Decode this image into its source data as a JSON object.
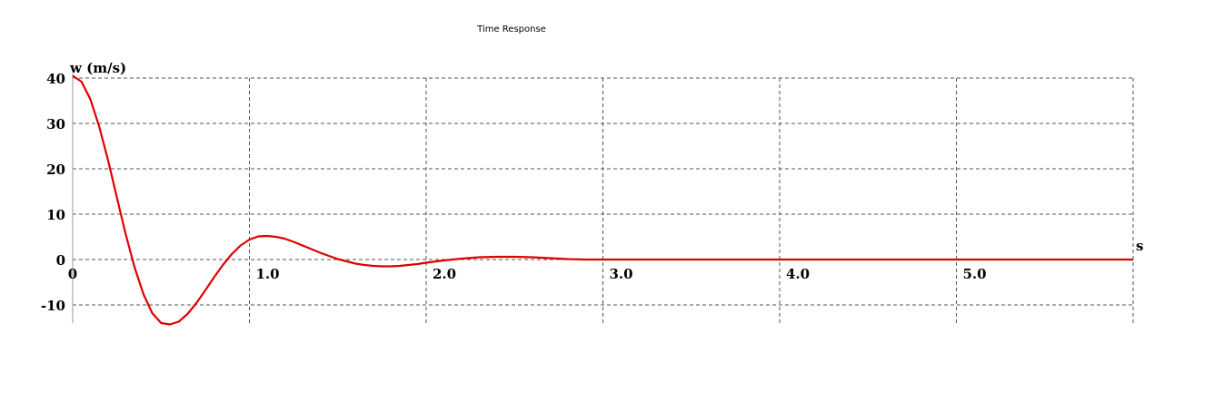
{
  "chart_data": {
    "type": "line",
    "title": "Time Response",
    "ylabel": "w (m/s)",
    "xlabel": "s",
    "xlim": [
      0,
      6.0
    ],
    "ylim": [
      -14,
      41
    ],
    "grid": true,
    "x_ticks": [
      0,
      1.0,
      2.0,
      3.0,
      4.0,
      5.0
    ],
    "x_tick_labels": [
      "0",
      "1.0",
      "2.0",
      "3.0",
      "4.0",
      "5.0"
    ],
    "y_ticks": [
      40,
      30,
      20,
      10,
      0,
      -10
    ],
    "y_tick_labels": [
      "40",
      "30",
      "20",
      "10",
      "0",
      "-10"
    ],
    "series": [
      {
        "color": "#e00000",
        "x": [
          0,
          0.05,
          0.1,
          0.15,
          0.2,
          0.25,
          0.3,
          0.35,
          0.4,
          0.45,
          0.5,
          0.55,
          0.6,
          0.65,
          0.7,
          0.75,
          0.8,
          0.85,
          0.9,
          0.95,
          1.0,
          1.05,
          1.1,
          1.15,
          1.2,
          1.25,
          1.3,
          1.35,
          1.4,
          1.45,
          1.5,
          1.55,
          1.6,
          1.65,
          1.7,
          1.75,
          1.8,
          1.85,
          1.9,
          1.95,
          2.0,
          2.1,
          2.2,
          2.3,
          2.4,
          2.5,
          2.6,
          2.7,
          2.8,
          2.9,
          3.0,
          3.2,
          3.4,
          3.6,
          3.8,
          4.0,
          4.5,
          5.0,
          5.5,
          6.0
        ],
        "y": [
          40.5,
          39.2,
          35.3,
          29.3,
          21.9,
          13.7,
          5.6,
          -1.7,
          -7.6,
          -11.8,
          -14.0,
          -14.3,
          -13.7,
          -12.0,
          -9.6,
          -6.8,
          -3.9,
          -1.2,
          1.2,
          3.1,
          4.4,
          5.1,
          5.2,
          5.0,
          4.6,
          3.9,
          3.1,
          2.3,
          1.5,
          0.8,
          0.1,
          -0.4,
          -0.9,
          -1.2,
          -1.4,
          -1.5,
          -1.5,
          -1.4,
          -1.2,
          -1.0,
          -0.7,
          -0.2,
          0.2,
          0.5,
          0.6,
          0.6,
          0.5,
          0.3,
          0.1,
          0.0,
          0.0,
          0.0,
          0.0,
          0.0,
          0.0,
          0.0,
          0.0,
          0.0,
          0.0,
          0.0
        ]
      }
    ]
  }
}
